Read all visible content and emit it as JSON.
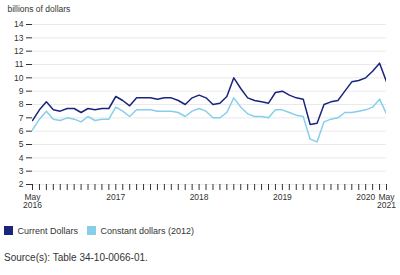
{
  "chart_data": {
    "type": "line",
    "ylabel": "billions of dollars",
    "categories": [
      "May\n2016",
      null,
      null,
      null,
      null,
      null,
      null,
      null,
      null,
      null,
      null,
      null,
      "2017",
      null,
      null,
      null,
      null,
      null,
      null,
      null,
      null,
      null,
      null,
      null,
      "2018",
      null,
      null,
      null,
      null,
      null,
      null,
      null,
      null,
      null,
      null,
      null,
      "2019",
      null,
      null,
      null,
      null,
      null,
      null,
      null,
      null,
      null,
      null,
      null,
      "2020",
      null,
      null,
      "May\n2021"
    ],
    "series": [
      {
        "name": "Current Dollars",
        "color": "#1a237e",
        "values": [
          6.8,
          7.6,
          8.2,
          7.6,
          7.5,
          7.7,
          7.7,
          7.4,
          7.7,
          7.6,
          7.7,
          7.7,
          8.6,
          8.3,
          7.9,
          8.5,
          8.5,
          8.5,
          8.4,
          8.5,
          8.5,
          8.3,
          8.0,
          8.5,
          8.7,
          8.5,
          8.0,
          8.1,
          8.6,
          10.0,
          9.2,
          8.5,
          8.3,
          8.2,
          8.1,
          8.9,
          9.0,
          8.7,
          8.5,
          8.4,
          6.5,
          6.6,
          8.0,
          8.2,
          8.3,
          9.0,
          9.7,
          9.8,
          10.0,
          10.5,
          11.1,
          9.7
        ]
      },
      {
        "name": "Constant dollars (2012)",
        "color": "#87ceeb",
        "values": [
          6.1,
          6.9,
          7.5,
          6.9,
          6.8,
          7.0,
          6.9,
          6.7,
          7.1,
          6.8,
          6.9,
          6.9,
          7.8,
          7.5,
          7.1,
          7.6,
          7.6,
          7.6,
          7.5,
          7.5,
          7.5,
          7.4,
          7.1,
          7.5,
          7.7,
          7.5,
          7.0,
          7.0,
          7.4,
          8.5,
          7.8,
          7.3,
          7.1,
          7.1,
          7.0,
          7.6,
          7.6,
          7.4,
          7.2,
          7.1,
          5.4,
          5.2,
          6.7,
          6.9,
          7.0,
          7.4,
          7.4,
          7.5,
          7.6,
          7.8,
          8.4,
          7.3
        ]
      }
    ],
    "ylim": [
      2,
      14
    ],
    "yticks": [
      2,
      3,
      4,
      5,
      6,
      7,
      8,
      9,
      10,
      11,
      12,
      13,
      14
    ],
    "grid": true,
    "legend": "bottom",
    "caption": "Source(s): Table 34-10-0066-01."
  }
}
